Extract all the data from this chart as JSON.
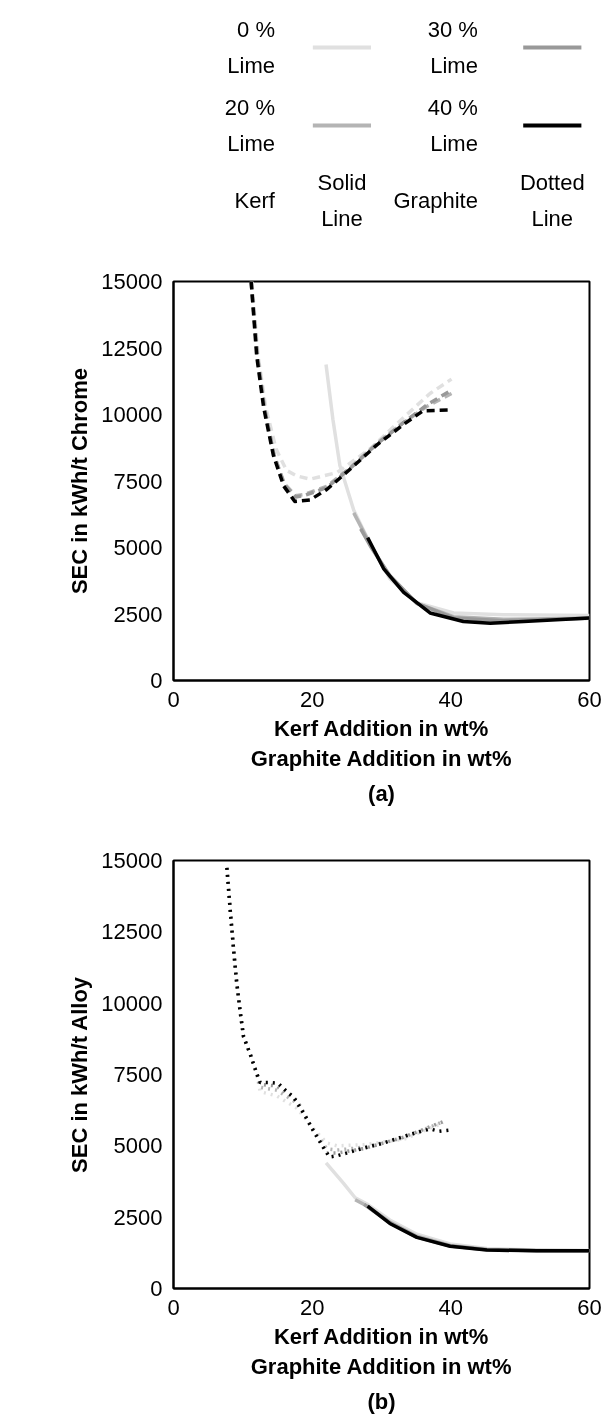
{
  "chart_data": [
    {
      "type": "line",
      "title": "(a)",
      "xlabel": "Kerf Addition in wt%\nGraphite Addition in wt%",
      "ylabel": "SEC in kWh/t Chrome",
      "xlim": [
        0,
        60
      ],
      "ylim": [
        0,
        15000
      ],
      "xticks": [
        0,
        20,
        40,
        60
      ],
      "yticks": [
        0,
        2500,
        5000,
        7500,
        10000,
        12500,
        15000
      ],
      "legend": "top",
      "annotations": [
        "Kerf",
        "Solid Line",
        "Graphite",
        "Dotted Line"
      ],
      "series": [
        {
          "name": "0 % Lime",
          "color": "#e0e0e0",
          "line_style": "solid",
          "x": [
            22.0,
            23.0,
            24.0,
            26.0,
            28.4,
            31.2,
            35.1,
            40.4,
            47.6,
            60
          ],
          "values": [
            11880,
            9800,
            8080,
            6400,
            5120,
            3830,
            2930,
            2540,
            2470,
            2440
          ]
        },
        {
          "name": "20 % Lime",
          "color": "#b4b4b4",
          "line_style": "solid",
          "x": [
            26.0,
            28.4,
            31.2,
            35.1,
            40.4,
            47.6,
            60
          ],
          "values": [
            6300,
            5100,
            3900,
            2900,
            2400,
            2300,
            2340
          ]
        },
        {
          "name": "30 % Lime",
          "color": "#999999",
          "line_style": "solid",
          "x": [
            27.0,
            28.4,
            31.2,
            35.1,
            40.4,
            47.6,
            60
          ],
          "values": [
            5700,
            5050,
            3950,
            2900,
            2350,
            2250,
            2340
          ]
        },
        {
          "name": "40 % Lime",
          "color": "#000000",
          "line_style": "solid",
          "x": [
            28.0,
            30.3,
            33.2,
            37.0,
            41.8,
            45.7,
            50.5,
            60
          ],
          "values": [
            5370,
            4210,
            3310,
            2540,
            2220,
            2150,
            2220,
            2350
          ]
        },
        {
          "color": "#e0e0e0",
          "line_style": "dashed",
          "x": [
            11.3,
            12.2,
            13.3,
            14.8,
            16.3,
            17.8,
            19.7,
            23.6,
            28.4,
            33.2,
            37.0,
            40.1
          ],
          "values": [
            15000,
            12200,
            10270,
            8700,
            7900,
            7690,
            7570,
            7820,
            8720,
            9890,
            10790,
            11330
          ]
        },
        {
          "color": "#b4b4b4",
          "line_style": "dashed",
          "x": [
            11.2,
            12.1,
            13.1,
            14.5,
            16.0,
            17.6,
            18.8,
            22.1,
            25.5,
            29.3,
            33.2,
            36.5,
            40.1
          ],
          "values": [
            15000,
            12200,
            10270,
            8470,
            7400,
            6950,
            6990,
            7300,
            8000,
            8900,
            9700,
            10300,
            10790
          ]
        },
        {
          "color": "#999999",
          "line_style": "dashed",
          "x": [
            11.2,
            12.1,
            13.1,
            14.5,
            16.0,
            17.6,
            18.8,
            22.1,
            25.5,
            29.3,
            33.2,
            36.5,
            40.1
          ],
          "values": [
            15000,
            12200,
            10270,
            8470,
            7350,
            6900,
            6950,
            7250,
            7980,
            8880,
            9700,
            10350,
            10920
          ]
        },
        {
          "color": "#000000",
          "line_style": "dashed",
          "x": [
            11.2,
            12.0,
            13.0,
            14.4,
            15.9,
            17.5,
            19.7,
            22.1,
            25.5,
            29.3,
            33.2,
            36.0,
            40.1
          ],
          "values": [
            15000,
            12200,
            10270,
            8470,
            7310,
            6730,
            6790,
            7180,
            7950,
            8850,
            9630,
            10140,
            10170
          ]
        }
      ]
    },
    {
      "type": "line",
      "title": "(b)",
      "xlabel": "Kerf Addition in wt%\nGraphite Addition in wt%",
      "ylabel": "SEC in kWh/t Alloy",
      "xlim": [
        0,
        60
      ],
      "ylim": [
        0,
        15000
      ],
      "xticks": [
        0,
        20,
        40,
        60
      ],
      "yticks": [
        0,
        2500,
        5000,
        7500,
        10000,
        12500,
        15000
      ],
      "series": [
        {
          "color": "#e0e0e0",
          "line_style": "solid",
          "x": [
            22.0,
            24.5,
            26.2,
            28.0,
            31.2,
            35.1,
            39.9,
            45.2,
            52.4,
            60
          ],
          "values": [
            4400,
            3690,
            3180,
            2950,
            2400,
            1900,
            1560,
            1400,
            1350,
            1330
          ]
        },
        {
          "color": "#b4b4b4",
          "line_style": "solid",
          "x": [
            26.2,
            27.9,
            31.2,
            35.1,
            39.9,
            45.2,
            52.4,
            60
          ],
          "values": [
            3110,
            2890,
            2330,
            1830,
            1510,
            1370,
            1330,
            1325
          ]
        },
        {
          "color": "#999999",
          "line_style": "solid",
          "x": [
            27.5,
            31.2,
            35.1,
            39.9,
            45.2,
            52.4,
            60
          ],
          "values": [
            2950,
            2300,
            1800,
            1490,
            1360,
            1325,
            1325
          ]
        },
        {
          "color": "#000000",
          "line_style": "solid",
          "x": [
            28.0,
            31.2,
            35.1,
            39.9,
            45.2,
            52.4,
            60
          ],
          "values": [
            2890,
            2280,
            1790,
            1480,
            1350,
            1320,
            1320
          ]
        },
        {
          "color": "#e0e0e0",
          "line_style": "dotted",
          "x": [
            7.7,
            8.2,
            8.7,
            9.1,
            9.6,
            10.1,
            11.1,
            11.9,
            12.5,
            14.9,
            16.3,
            17.8,
            20.2,
            22.1,
            23.6,
            27.4,
            33.2,
            38.9
          ],
          "values": [
            14740,
            13200,
            11790,
            10760,
            9730,
            8830,
            8190,
            7610,
            6900,
            6750,
            6540,
            6320,
            5600,
            5100,
            5000,
            5040,
            5230,
            5810
          ]
        },
        {
          "color": "#b4b4b4",
          "line_style": "dotted",
          "x": [
            7.7,
            8.2,
            8.7,
            9.1,
            9.6,
            10.1,
            11.1,
            11.9,
            12.5,
            14.9,
            16.3,
            17.8,
            20.2,
            22.1,
            23.6,
            27.4,
            33.2,
            38.9
          ],
          "values": [
            14740,
            13200,
            11790,
            10760,
            9730,
            8830,
            8190,
            7610,
            7050,
            6950,
            6740,
            6500,
            5550,
            4900,
            4850,
            4950,
            5280,
            5850
          ]
        },
        {
          "color": "#999999",
          "line_style": "dotted",
          "x": [
            7.7,
            8.2,
            8.7,
            9.1,
            9.6,
            10.1,
            11.1,
            11.9,
            12.5,
            14.9,
            16.3,
            17.8,
            20.2,
            22.1,
            23.6,
            27.4,
            33.2,
            38.9
          ],
          "values": [
            14740,
            13200,
            11790,
            10760,
            9730,
            8830,
            8190,
            7610,
            7150,
            7100,
            6850,
            6600,
            5530,
            4750,
            4750,
            4900,
            5300,
            5850
          ]
        },
        {
          "color": "#000000",
          "line_style": "dotted",
          "x": [
            7.7,
            8.2,
            8.7,
            9.1,
            9.6,
            10.1,
            11.1,
            11.9,
            12.5,
            13.8,
            15.1,
            16.2,
            17.3,
            18.8,
            20.2,
            21.6,
            22.5,
            23.6,
            26.4,
            30.3,
            34.1,
            37.0,
            38.3,
            39.7
          ],
          "values": [
            14740,
            13200,
            11790,
            10760,
            9730,
            8830,
            8190,
            7610,
            7220,
            7220,
            7190,
            6940,
            6710,
            6130,
            5510,
            4950,
            4610,
            4650,
            4850,
            5100,
            5400,
            5590,
            5510,
            5550
          ]
        }
      ]
    }
  ]
}
